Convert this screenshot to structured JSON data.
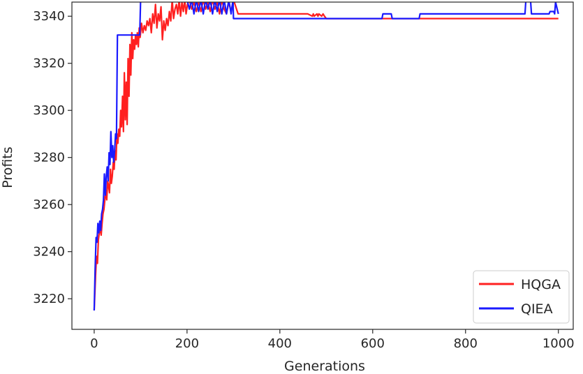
{
  "chart_data": {
    "type": "line",
    "title": "",
    "xlabel": "Generations",
    "ylabel": "Profits",
    "xlim": [
      -48,
      1032
    ],
    "ylim": [
      3207,
      3346
    ],
    "xticks": [
      0,
      200,
      400,
      600,
      800,
      1000
    ],
    "yticks": [
      3220,
      3240,
      3260,
      3280,
      3300,
      3320,
      3340
    ],
    "grid": false,
    "legend": "bottom-right",
    "series": [
      {
        "name": "HQGA",
        "color": "#ff2020",
        "x": [
          0,
          3,
          5,
          7,
          9,
          11,
          13,
          15,
          17,
          19,
          21,
          23,
          25,
          27,
          29,
          31,
          33,
          35,
          37,
          39,
          41,
          43,
          45,
          47,
          49,
          51,
          53,
          55,
          57,
          59,
          61,
          63,
          65,
          67,
          69,
          71,
          73,
          75,
          77,
          79,
          81,
          83,
          85,
          87,
          89,
          91,
          93,
          95,
          97,
          99,
          102,
          105,
          108,
          111,
          114,
          117,
          120,
          123,
          126,
          129,
          132,
          135,
          138,
          141,
          144,
          147,
          150,
          153,
          156,
          159,
          162,
          165,
          168,
          171,
          174,
          177,
          180,
          183,
          186,
          189,
          192,
          195,
          198,
          201,
          205,
          210,
          215,
          220,
          225,
          230,
          235,
          240,
          245,
          250,
          255,
          260,
          265,
          270,
          275,
          280,
          285,
          290,
          295,
          300,
          310,
          340,
          380,
          420,
          460,
          470,
          472,
          474,
          480,
          482,
          484,
          490,
          493,
          496,
          500,
          540,
          600,
          660,
          720,
          780,
          840,
          900,
          960,
          1000
        ],
        "values": [
          3215,
          3230,
          3238,
          3235,
          3245,
          3248,
          3250,
          3247,
          3252,
          3256,
          3258,
          3262,
          3266,
          3262,
          3270,
          3268,
          3265,
          3275,
          3269,
          3272,
          3278,
          3275,
          3283,
          3279,
          3290,
          3286,
          3292,
          3289,
          3300,
          3293,
          3306,
          3291,
          3316,
          3296,
          3312,
          3294,
          3322,
          3306,
          3328,
          3315,
          3333,
          3322,
          3330,
          3326,
          3332,
          3328,
          3333,
          3327,
          3335,
          3331,
          3337,
          3333,
          3336,
          3334,
          3338,
          3336,
          3339,
          3333,
          3341,
          3337,
          3345,
          3335,
          3341,
          3338,
          3344,
          3330,
          3338,
          3334,
          3339,
          3336,
          3342,
          3338,
          3347,
          3339,
          3343,
          3345,
          3341,
          3347,
          3340,
          3346,
          3342,
          3347,
          3341,
          3345,
          3347,
          3343,
          3346,
          3342,
          3346,
          3342,
          3347,
          3343,
          3346,
          3342,
          3347,
          3343,
          3346,
          3341,
          3347,
          3343,
          3341,
          3346,
          3342,
          3347,
          3341,
          3341,
          3341,
          3341,
          3341,
          3340,
          3341,
          3340,
          3341,
          3340,
          3341,
          3340,
          3341,
          3340,
          3339,
          3339,
          3339,
          3339,
          3339,
          3339,
          3339,
          3339,
          3339,
          3339
        ]
      },
      {
        "name": "QIEA",
        "color": "#1a1aff",
        "x": [
          0,
          2,
          4,
          6,
          8,
          10,
          12,
          14,
          16,
          18,
          20,
          22,
          24,
          26,
          28,
          30,
          32,
          34,
          36,
          38,
          40,
          42,
          44,
          46,
          48,
          50,
          52,
          54,
          56,
          58,
          60,
          98,
          100,
          102,
          105,
          110,
          120,
          150,
          180,
          200,
          205,
          210,
          215,
          220,
          225,
          230,
          235,
          240,
          245,
          250,
          255,
          260,
          265,
          270,
          275,
          280,
          285,
          290,
          295,
          299,
          300,
          350,
          400,
          450,
          500,
          550,
          600,
          620,
          622,
          640,
          642,
          700,
          702,
          760,
          820,
          880,
          928,
          930,
          940,
          942,
          980,
          982,
          990,
          992,
          994,
          1000
        ],
        "values": [
          3215,
          3232,
          3246,
          3244,
          3252,
          3248,
          3253,
          3249,
          3256,
          3258,
          3262,
          3273,
          3264,
          3272,
          3276,
          3270,
          3282,
          3277,
          3291,
          3280,
          3285,
          3278,
          3283,
          3290,
          3288,
          3332,
          3332,
          3332,
          3332,
          3332,
          3332,
          3332,
          3347,
          3347,
          3347,
          3347,
          3347,
          3347,
          3347,
          3347,
          3343,
          3347,
          3341,
          3347,
          3342,
          3347,
          3341,
          3347,
          3343,
          3347,
          3341,
          3347,
          3342,
          3347,
          3341,
          3347,
          3341,
          3347,
          3341,
          3347,
          3339,
          3339,
          3339,
          3339,
          3339,
          3339,
          3339,
          3339,
          3341,
          3341,
          3339,
          3339,
          3341,
          3341,
          3341,
          3341,
          3341,
          3347,
          3347,
          3341,
          3341,
          3342,
          3342,
          3341,
          3346,
          3341
        ]
      }
    ]
  }
}
